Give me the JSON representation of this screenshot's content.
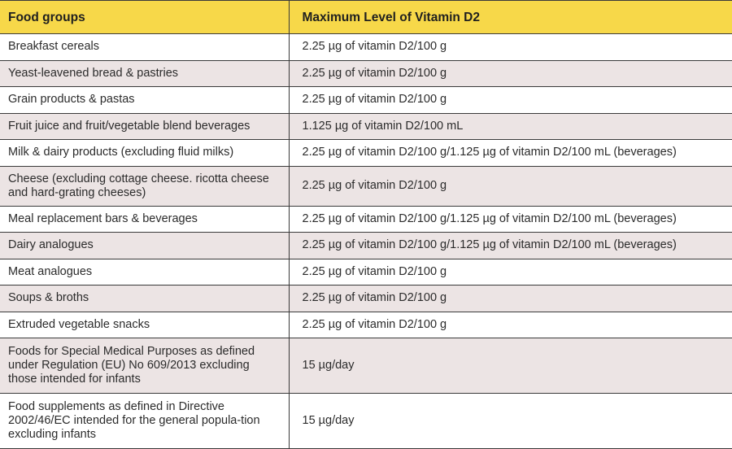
{
  "table": {
    "headers": [
      "Food groups",
      "Maximum Level of Vitamin D2"
    ],
    "rows": [
      [
        "Breakfast cereals",
        "2.25 µg of vitamin D2/100 g"
      ],
      [
        "Yeast-leavened bread & pastries",
        "2.25 µg of vitamin D2/100 g"
      ],
      [
        "Grain products & pastas",
        "2.25 µg of vitamin D2/100 g"
      ],
      [
        "Fruit juice and fruit/vegetable blend beverages",
        "1.125 µg of vitamin D2/100 mL"
      ],
      [
        "Milk & dairy products (excluding fluid milks)",
        "2.25 µg of vitamin D2/100 g/1.125 µg of vitamin D2/100 mL (beverages)"
      ],
      [
        "Cheese (excluding cottage cheese. ricotta cheese and hard-grating cheeses)",
        "2.25 µg of vitamin D2/100 g"
      ],
      [
        "Meal replacement bars & beverages",
        "2.25 µg of vitamin D2/100 g/1.125 µg of vitamin D2/100 mL (beverages)"
      ],
      [
        "Dairy analogues",
        "2.25 µg of vitamin D2/100 g/1.125 µg of vitamin D2/100 mL (beverages)"
      ],
      [
        "Meat analogues",
        "2.25 µg of vitamin D2/100 g"
      ],
      [
        "Soups & broths",
        "2.25 µg of vitamin D2/100 g"
      ],
      [
        "Extruded vegetable snacks",
        "2.25 µg of vitamin D2/100 g"
      ],
      [
        "Foods for Special Medical Purposes as defined under Regulation (EU) No 609/2013 excluding those intended for infants",
        "15 µg/day"
      ],
      [
        "Food supplements as defined in Directive 2002/46/EC intended for the general popula-tion excluding infants",
        "15 µg/day"
      ]
    ]
  }
}
